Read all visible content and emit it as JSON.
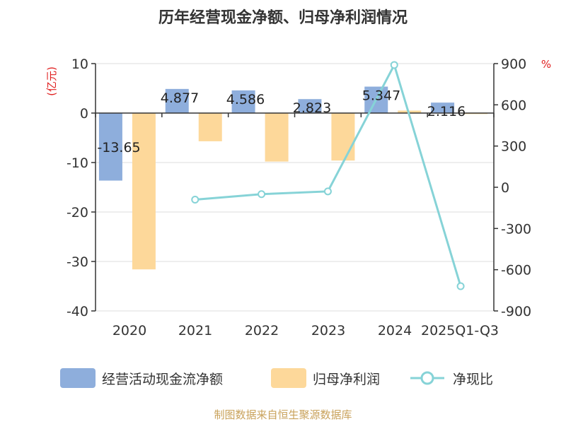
{
  "chart_data": {
    "type": "bar",
    "title": "历年经营现金净额、归母净利润情况",
    "categories": [
      "2020",
      "2021",
      "2022",
      "2023",
      "2024",
      "2025Q1-Q3"
    ],
    "left_unit": "(亿元)",
    "right_unit": "%",
    "ylim_left": [
      -40,
      10
    ],
    "ylim_right": [
      -900,
      900
    ],
    "left_ticks": [
      "10",
      "0",
      "-10",
      "-20",
      "-30",
      "-40"
    ],
    "right_ticks": [
      "900",
      "600",
      "300",
      "0",
      "-300",
      "-600",
      "-900"
    ],
    "series": [
      {
        "name": "经营活动现金流净额",
        "type": "bar",
        "color": "#8eaedc",
        "values": [
          -13.65,
          4.877,
          4.586,
          2.823,
          5.347,
          2.116
        ],
        "labels": [
          "-13.65",
          "4.877",
          "4.586",
          "2.823",
          "5.347",
          "2.116"
        ]
      },
      {
        "name": "归母净利润",
        "type": "bar",
        "color": "#fdd89a",
        "values": [
          -31.6,
          -5.7,
          -9.8,
          -9.6,
          0.5,
          -0.2
        ]
      },
      {
        "name": "净现比",
        "type": "line",
        "axis": "right",
        "color": "#86d3d7",
        "values": [
          null,
          -90,
          -50,
          -30,
          890,
          -720
        ]
      }
    ],
    "source": "制图数据来自恒生聚源数据库"
  }
}
